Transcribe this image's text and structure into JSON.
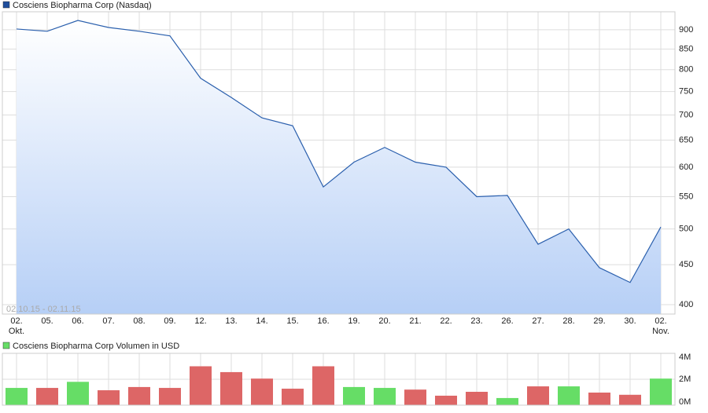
{
  "chart_data": [
    {
      "type": "line",
      "title": "Cosciens Biopharma Corp (Nasdaq)",
      "legend_color": "#1f4e9c",
      "annotation": "02.10.15 - 02.11.15",
      "categories": [
        "02.",
        "05.",
        "06.",
        "07.",
        "08.",
        "09.",
        "12.",
        "13.",
        "14.",
        "15.",
        "16.",
        "19.",
        "20.",
        "21.",
        "22.",
        "23.",
        "26.",
        "27.",
        "28.",
        "29.",
        "30.",
        "02."
      ],
      "category_months": [
        "Okt.",
        null,
        null,
        null,
        null,
        null,
        null,
        null,
        null,
        null,
        null,
        null,
        null,
        null,
        null,
        null,
        null,
        null,
        null,
        null,
        null,
        "Nov."
      ],
      "series": [
        {
          "name": "Cosciens Biopharma Corp (Nasdaq)",
          "color": "#2a5fad",
          "values": [
            902,
            896,
            925,
            906,
            896,
            884,
            780,
            737,
            694,
            678,
            566,
            609,
            636,
            609,
            600,
            550,
            552,
            478,
            500,
            446,
            427,
            503
          ]
        }
      ],
      "log_scale": true,
      "ylim": [
        389,
        949
      ],
      "yticks": [
        400,
        450,
        500,
        550,
        600,
        650,
        700,
        750,
        800,
        850,
        900
      ],
      "grid": true
    },
    {
      "type": "bar",
      "title": "Cosciens Biopharma Corp Volumen in USD",
      "legend_color": "#66dd66",
      "values": [
        1330000,
        1330000,
        1800000,
        1150000,
        1400000,
        1330000,
        3000000,
        2550000,
        2050000,
        1270000,
        3000000,
        1400000,
        1330000,
        1200000,
        730000,
        1030000,
        550000,
        1450000,
        1450000,
        970000,
        800000,
        2050000
      ],
      "colors": [
        "#66dd66",
        "#dd6666",
        "#66dd66",
        "#dd6666",
        "#dd6666",
        "#dd6666",
        "#dd6666",
        "#dd6666",
        "#dd6666",
        "#dd6666",
        "#dd6666",
        "#66dd66",
        "#66dd66",
        "#dd6666",
        "#dd6666",
        "#dd6666",
        "#66dd66",
        "#dd6666",
        "#66dd66",
        "#dd6666",
        "#dd6666",
        "#66dd66"
      ],
      "ylim": [
        0,
        4000000
      ],
      "yticks": [
        {
          "value": 0,
          "label": "0M"
        },
        {
          "value": 2000000,
          "label": "2M"
        },
        {
          "value": 4000000,
          "label": "4M"
        }
      ],
      "grid": true
    }
  ]
}
